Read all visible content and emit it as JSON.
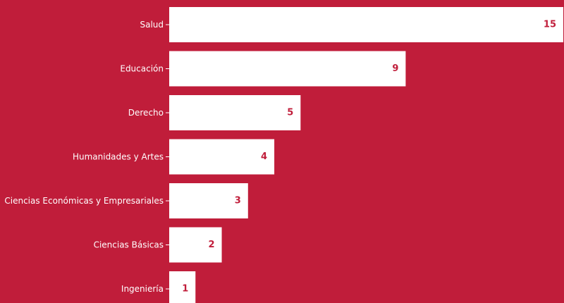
{
  "colors": {
    "background": "#C01D3A",
    "bar": "#FFFFFF",
    "label_text": "#FFFFFF",
    "value_text": "#C01D3A"
  },
  "chart_data": {
    "type": "bar",
    "orientation": "horizontal",
    "categories": [
      "Salud",
      "Educación",
      "Derecho",
      "Humanidades y Artes",
      "Ciencias Económicas y Empresariales",
      "Ciencias Básicas",
      "Ingeniería"
    ],
    "values": [
      15,
      9,
      5,
      4,
      3,
      2,
      1
    ],
    "value_labels": [
      "15",
      "9",
      "5",
      "4",
      "3",
      "2",
      "1"
    ],
    "title": "",
    "xlabel": "",
    "ylabel": "",
    "xlim": [
      0,
      15
    ],
    "grid": false,
    "legend": "none"
  }
}
